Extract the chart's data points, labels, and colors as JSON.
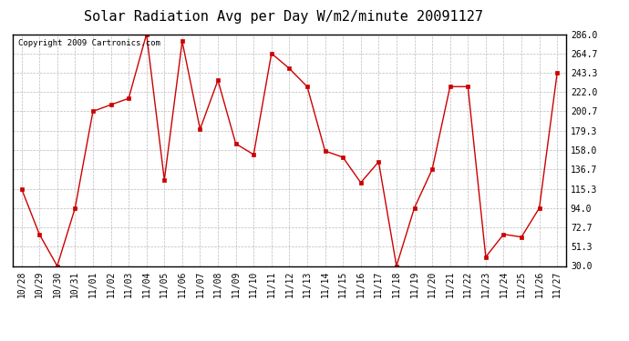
{
  "title": "Solar Radiation Avg per Day W/m2/minute 20091127",
  "copyright": "Copyright 2009 Cartronics.com",
  "labels": [
    "10/28",
    "10/29",
    "10/30",
    "10/31",
    "11/01",
    "11/02",
    "11/03",
    "11/04",
    "11/05",
    "11/06",
    "11/07",
    "11/08",
    "11/09",
    "11/10",
    "11/11",
    "11/12",
    "11/13",
    "11/14",
    "11/15",
    "11/16",
    "11/17",
    "11/18",
    "11/19",
    "11/20",
    "11/21",
    "11/22",
    "11/23",
    "11/24",
    "11/25",
    "11/26",
    "11/27"
  ],
  "values": [
    115.3,
    65.0,
    30.0,
    94.0,
    200.7,
    208.0,
    215.0,
    286.0,
    125.0,
    278.0,
    181.0,
    235.0,
    165.0,
    153.0,
    264.7,
    248.0,
    228.0,
    157.0,
    150.0,
    122.0,
    145.0,
    30.0,
    94.0,
    136.7,
    228.0,
    228.0,
    40.0,
    65.0,
    62.0,
    94.0,
    243.3
  ],
  "ymin": 30.0,
  "ymax": 286.0,
  "yticks": [
    30.0,
    51.3,
    72.7,
    94.0,
    115.3,
    136.7,
    158.0,
    179.3,
    200.7,
    222.0,
    243.3,
    264.7,
    286.0
  ],
  "line_color": "#cc0000",
  "marker_color": "#cc0000",
  "bg_color": "#ffffff",
  "grid_color": "#bbbbbb",
  "title_fontsize": 11,
  "copyright_fontsize": 6.5,
  "tick_fontsize": 7
}
